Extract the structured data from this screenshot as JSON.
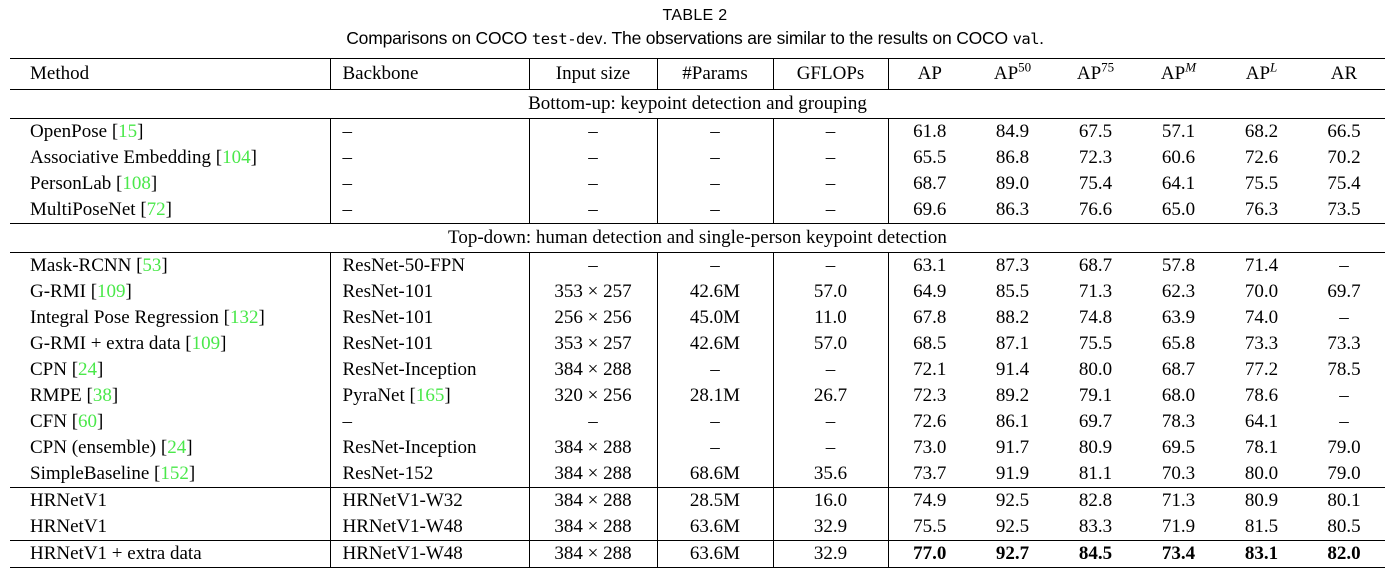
{
  "colors": {
    "citation_green": "#4ae84a",
    "text": "#000000",
    "background": "#ffffff"
  },
  "caption": {
    "label": "TABLE 2",
    "parts": [
      {
        "text": "Comparisons on COCO ",
        "mono": false
      },
      {
        "text": "test-dev",
        "mono": true
      },
      {
        "text": ". The observations are similar to the results on COCO ",
        "mono": false
      },
      {
        "text": "val",
        "mono": true
      },
      {
        "text": ".",
        "mono": false
      }
    ]
  },
  "table": {
    "columns": [
      {
        "label": "Method",
        "align": "left"
      },
      {
        "label": "Backbone",
        "align": "left"
      },
      {
        "label": "Input size",
        "align": "center"
      },
      {
        "label": "#Params",
        "align": "center"
      },
      {
        "label": "GFLOPs",
        "align": "center"
      },
      {
        "label": "AP",
        "align": "center"
      },
      {
        "label": "AP",
        "sup": "50",
        "align": "center"
      },
      {
        "label": "AP",
        "sup": "75",
        "align": "center"
      },
      {
        "label": "AP",
        "sup": "M",
        "sup_italic": true,
        "align": "center"
      },
      {
        "label": "AP",
        "sup": "L",
        "sup_italic": true,
        "align": "center"
      },
      {
        "label": "AR",
        "align": "center"
      }
    ],
    "groups": [
      {
        "section_header": "Bottom-up: keypoint detection and grouping"
      },
      {
        "rows": [
          {
            "method": "OpenPose",
            "method_cite": "15",
            "backbone": "–",
            "backbone_cite": null,
            "input_size": "–",
            "params": "–",
            "gflops": "–",
            "metrics": [
              "61.8",
              "84.9",
              "67.5",
              "57.1",
              "68.2",
              "66.5"
            ]
          },
          {
            "method": "Associative Embedding",
            "method_cite": "104",
            "backbone": "–",
            "backbone_cite": null,
            "input_size": "–",
            "params": "–",
            "gflops": "–",
            "metrics": [
              "65.5",
              "86.8",
              "72.3",
              "60.6",
              "72.6",
              "70.2"
            ]
          },
          {
            "method": "PersonLab",
            "method_cite": "108",
            "backbone": "–",
            "backbone_cite": null,
            "input_size": "–",
            "params": "–",
            "gflops": "–",
            "metrics": [
              "68.7",
              "89.0",
              "75.4",
              "64.1",
              "75.5",
              "75.4"
            ]
          },
          {
            "method": "MultiPoseNet",
            "method_cite": "72",
            "backbone": "–",
            "backbone_cite": null,
            "input_size": "–",
            "params": "–",
            "gflops": "–",
            "metrics": [
              "69.6",
              "86.3",
              "76.6",
              "65.0",
              "76.3",
              "73.5"
            ]
          }
        ]
      },
      {
        "section_header": "Top-down: human detection and single-person keypoint detection"
      },
      {
        "rows": [
          {
            "method": "Mask-RCNN",
            "method_cite": "53",
            "backbone": "ResNet-50-FPN",
            "backbone_cite": null,
            "input_size": "–",
            "params": "–",
            "gflops": "–",
            "metrics": [
              "63.1",
              "87.3",
              "68.7",
              "57.8",
              "71.4",
              "–"
            ]
          },
          {
            "method": "G-RMI",
            "method_cite": "109",
            "backbone": "ResNet-101",
            "backbone_cite": null,
            "input_size": "353 × 257",
            "params": "42.6M",
            "gflops": "57.0",
            "metrics": [
              "64.9",
              "85.5",
              "71.3",
              "62.3",
              "70.0",
              "69.7"
            ]
          },
          {
            "method": "Integral Pose Regression",
            "method_cite": "132",
            "backbone": "ResNet-101",
            "backbone_cite": null,
            "input_size": "256 × 256",
            "params": "45.0M",
            "gflops": "11.0",
            "metrics": [
              "67.8",
              "88.2",
              "74.8",
              "63.9",
              "74.0",
              "–"
            ]
          },
          {
            "method": "G-RMI + extra data",
            "method_cite": "109",
            "backbone": "ResNet-101",
            "backbone_cite": null,
            "input_size": "353 × 257",
            "params": "42.6M",
            "gflops": "57.0",
            "metrics": [
              "68.5",
              "87.1",
              "75.5",
              "65.8",
              "73.3",
              "73.3"
            ]
          },
          {
            "method": "CPN",
            "method_cite": "24",
            "backbone": "ResNet-Inception",
            "backbone_cite": null,
            "input_size": "384 × 288",
            "params": "–",
            "gflops": "–",
            "metrics": [
              "72.1",
              "91.4",
              "80.0",
              "68.7",
              "77.2",
              "78.5"
            ]
          },
          {
            "method": "RMPE",
            "method_cite": "38",
            "backbone": "PyraNet",
            "backbone_cite": "165",
            "input_size": "320 × 256",
            "params": "28.1M",
            "gflops": "26.7",
            "metrics": [
              "72.3",
              "89.2",
              "79.1",
              "68.0",
              "78.6",
              "–"
            ]
          },
          {
            "method": "CFN",
            "method_cite": "60",
            "backbone": "–",
            "backbone_cite": null,
            "input_size": "–",
            "params": "–",
            "gflops": "–",
            "metrics": [
              "72.6",
              "86.1",
              "69.7",
              "78.3",
              "64.1",
              "–"
            ]
          },
          {
            "method": "CPN (ensemble)",
            "method_cite": "24",
            "backbone": "ResNet-Inception",
            "backbone_cite": null,
            "input_size": "384 × 288",
            "params": "–",
            "gflops": "–",
            "metrics": [
              "73.0",
              "91.7",
              "80.9",
              "69.5",
              "78.1",
              "79.0"
            ]
          },
          {
            "method": "SimpleBaseline",
            "method_cite": "152",
            "backbone": "ResNet-152",
            "backbone_cite": null,
            "input_size": "384 × 288",
            "params": "68.6M",
            "gflops": "35.6",
            "metrics": [
              "73.7",
              "91.9",
              "81.1",
              "70.3",
              "80.0",
              "79.0"
            ]
          }
        ]
      },
      {
        "rows": [
          {
            "method": "HRNetV1",
            "method_cite": null,
            "backbone": "HRNetV1-W32",
            "backbone_cite": null,
            "input_size": "384 × 288",
            "params": "28.5M",
            "gflops": "16.0",
            "metrics": [
              "74.9",
              "92.5",
              "82.8",
              "71.3",
              "80.9",
              "80.1"
            ]
          },
          {
            "method": "HRNetV1",
            "method_cite": null,
            "backbone": "HRNetV1-W48",
            "backbone_cite": null,
            "input_size": "384 × 288",
            "params": "63.6M",
            "gflops": "32.9",
            "metrics": [
              "75.5",
              "92.5",
              "83.3",
              "71.9",
              "81.5",
              "80.5"
            ]
          }
        ]
      },
      {
        "bold_metrics": true,
        "rows": [
          {
            "method": "HRNetV1 + extra data",
            "method_cite": null,
            "backbone": "HRNetV1-W48",
            "backbone_cite": null,
            "input_size": "384 × 288",
            "params": "63.6M",
            "gflops": "32.9",
            "metrics": [
              "77.0",
              "92.7",
              "84.5",
              "73.4",
              "83.1",
              "82.0"
            ]
          }
        ]
      }
    ]
  }
}
